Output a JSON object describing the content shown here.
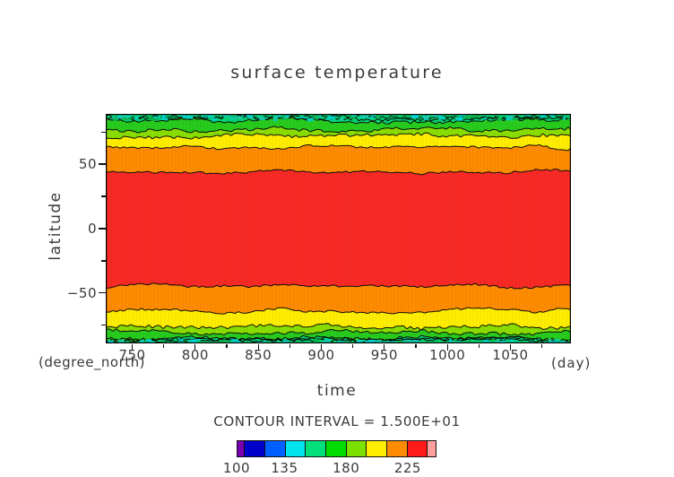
{
  "chart_data": {
    "type": "filled_contour",
    "title": "surface temperature",
    "xlabel": "time",
    "x_unit": "(day)",
    "ylabel": "latitude",
    "y_unit": "(degree_north)",
    "xlim": [
      729,
      1098
    ],
    "ylim": [
      -89,
      89
    ],
    "x_major_ticks": [
      750,
      800,
      850,
      900,
      950,
      1000,
      1050
    ],
    "x_minor_ticks": [
      775,
      825,
      875,
      925,
      975,
      1025,
      1075
    ],
    "y_major_ticks": [
      50,
      0,
      -50
    ],
    "y_minor_ticks": [
      75,
      25,
      -25,
      -75
    ],
    "grid": false,
    "contour_interval": 15,
    "contour_interval_label": "CONTOUR INTERVAL = 1.500E+01",
    "contour_levels": [
      105,
      120,
      135,
      150,
      165,
      180,
      195,
      210,
      225,
      240
    ],
    "core_band": {
      "value_range": "225-240",
      "color": "#f92a26",
      "lat_extent": [
        -44,
        44
      ]
    },
    "north_contours": [
      {
        "level": 225,
        "lat": 44,
        "outer_band": "210-225",
        "outer_color": "#ff8c00"
      },
      {
        "level": 210,
        "lat": 63,
        "outer_band": "195-210",
        "outer_color": "#ffee00"
      },
      {
        "level": 195,
        "lat": 71.5,
        "outer_band": "180-195",
        "outer_color": "#8ade00"
      },
      {
        "level": 180,
        "lat": 76.5,
        "outer_band": "165-180",
        "outer_color": "#28cc1e"
      },
      {
        "level": 165,
        "lat": 84,
        "outer_band": "150-165",
        "outer_color": "#00d471"
      }
    ],
    "south_contours": [
      {
        "level": 225,
        "lat": -44.5,
        "outer_band": "210-225",
        "outer_color": "#ff8c00"
      },
      {
        "level": 210,
        "lat": -63.5,
        "outer_band": "195-210",
        "outer_color": "#ffee00"
      },
      {
        "level": 195,
        "lat": -76,
        "outer_band": "180-195",
        "outer_color": "#8ade00"
      },
      {
        "level": 180,
        "lat": -80.5,
        "outer_band": "165-180",
        "outer_color": "#28cc1e"
      },
      {
        "level": 165,
        "lat": -85.5,
        "outer_band": "150-165",
        "outer_color": "#00d471"
      }
    ],
    "polar_fleck_band": {
      "value_range": "135-150",
      "colors": [
        "#00d2c0",
        "#00d8d8",
        "#19ccaa",
        "#0ab84a"
      ],
      "lat_extent_north": [
        85,
        89
      ],
      "lat_extent_south": [
        -89,
        -85
      ]
    },
    "colorbar": {
      "domain": [
        100,
        246
      ],
      "tick_labels": [
        "100",
        "135",
        "180",
        "225"
      ],
      "tick_values": [
        100,
        135,
        180,
        225
      ],
      "segments": [
        {
          "name": "purple",
          "color": "#7a00b4",
          "from": 100,
          "to": 105
        },
        {
          "name": "navy",
          "color": "#0000cd",
          "from": 105,
          "to": 120
        },
        {
          "name": "blue",
          "color": "#0060ff",
          "from": 120,
          "to": 135
        },
        {
          "name": "cyan",
          "color": "#00e4f0",
          "from": 135,
          "to": 150
        },
        {
          "name": "spring-green",
          "color": "#00e07a",
          "from": 150,
          "to": 165
        },
        {
          "name": "green",
          "color": "#00dc00",
          "from": 165,
          "to": 180
        },
        {
          "name": "yellow-green",
          "color": "#7ce000",
          "from": 180,
          "to": 195
        },
        {
          "name": "yellow",
          "color": "#ffee00",
          "from": 195,
          "to": 210
        },
        {
          "name": "orange",
          "color": "#ff8c00",
          "from": 210,
          "to": 225
        },
        {
          "name": "red",
          "color": "#ff1a1a",
          "from": 225,
          "to": 240
        },
        {
          "name": "pink",
          "color": "#ff9e9e",
          "from": 240,
          "to": 246
        }
      ]
    }
  }
}
